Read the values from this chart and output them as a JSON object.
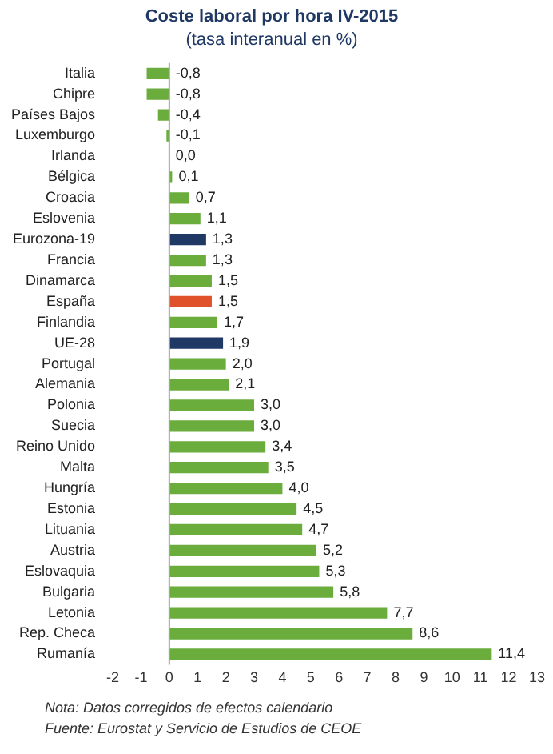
{
  "chart_data": {
    "type": "bar",
    "orientation": "horizontal",
    "title": "Coste laboral por hora IV-2015",
    "subtitle": "(tasa interanual en %)",
    "categories": [
      "Italia",
      "Chipre",
      "Países Bajos",
      "Luxemburgo",
      "Irlanda",
      "Bélgica",
      "Croacia",
      "Eslovenia",
      "Eurozona-19",
      "Francia",
      "Dinamarca",
      "España",
      "Finlandia",
      "UE-28",
      "Portugal",
      "Alemania",
      "Polonia",
      "Suecia",
      "Reino Unido",
      "Malta",
      "Hungría",
      "Estonia",
      "Lituania",
      "Austria",
      "Eslovaquia",
      "Bulgaria",
      "Letonia",
      "Rep. Checa",
      "Rumanía"
    ],
    "values": [
      -0.8,
      -0.8,
      -0.4,
      -0.1,
      0.0,
      0.1,
      0.7,
      1.1,
      1.3,
      1.3,
      1.5,
      1.5,
      1.7,
      1.9,
      2.0,
      2.1,
      3.0,
      3.0,
      3.4,
      3.5,
      4.0,
      4.5,
      4.7,
      5.2,
      5.3,
      5.8,
      7.7,
      8.6,
      11.4
    ],
    "value_labels": [
      "-0,8",
      "-0,8",
      "-0,4",
      "-0,1",
      "0,0",
      "0,1",
      "0,7",
      "1,1",
      "1,3",
      "1,3",
      "1,5",
      "1,5",
      "1,7",
      "1,9",
      "2,0",
      "2,1",
      "3,0",
      "3,0",
      "3,4",
      "3,5",
      "4,0",
      "4,5",
      "4,7",
      "5,2",
      "5,3",
      "5,8",
      "7,7",
      "8,6",
      "11,4"
    ],
    "colors": [
      "#6aad3d",
      "#6aad3d",
      "#6aad3d",
      "#6aad3d",
      "#6aad3d",
      "#6aad3d",
      "#6aad3d",
      "#6aad3d",
      "#1f3864",
      "#6aad3d",
      "#6aad3d",
      "#e0522a",
      "#6aad3d",
      "#1f3864",
      "#6aad3d",
      "#6aad3d",
      "#6aad3d",
      "#6aad3d",
      "#6aad3d",
      "#6aad3d",
      "#6aad3d",
      "#6aad3d",
      "#6aad3d",
      "#6aad3d",
      "#6aad3d",
      "#6aad3d",
      "#6aad3d",
      "#6aad3d",
      "#6aad3d"
    ],
    "ref_lines": [
      {
        "axis": "x",
        "value": 0,
        "color": "#a6a6a6"
      }
    ],
    "xlim": [
      -2,
      13
    ],
    "xticks": [
      -2,
      -1,
      0,
      1,
      2,
      3,
      4,
      5,
      6,
      7,
      8,
      9,
      10,
      11,
      12,
      13
    ],
    "grid": false,
    "annotations": [
      "Nota: Datos corregidos de efectos calendario",
      "Fuente: Eurostat y Servicio de Estudios de CEOE"
    ]
  }
}
